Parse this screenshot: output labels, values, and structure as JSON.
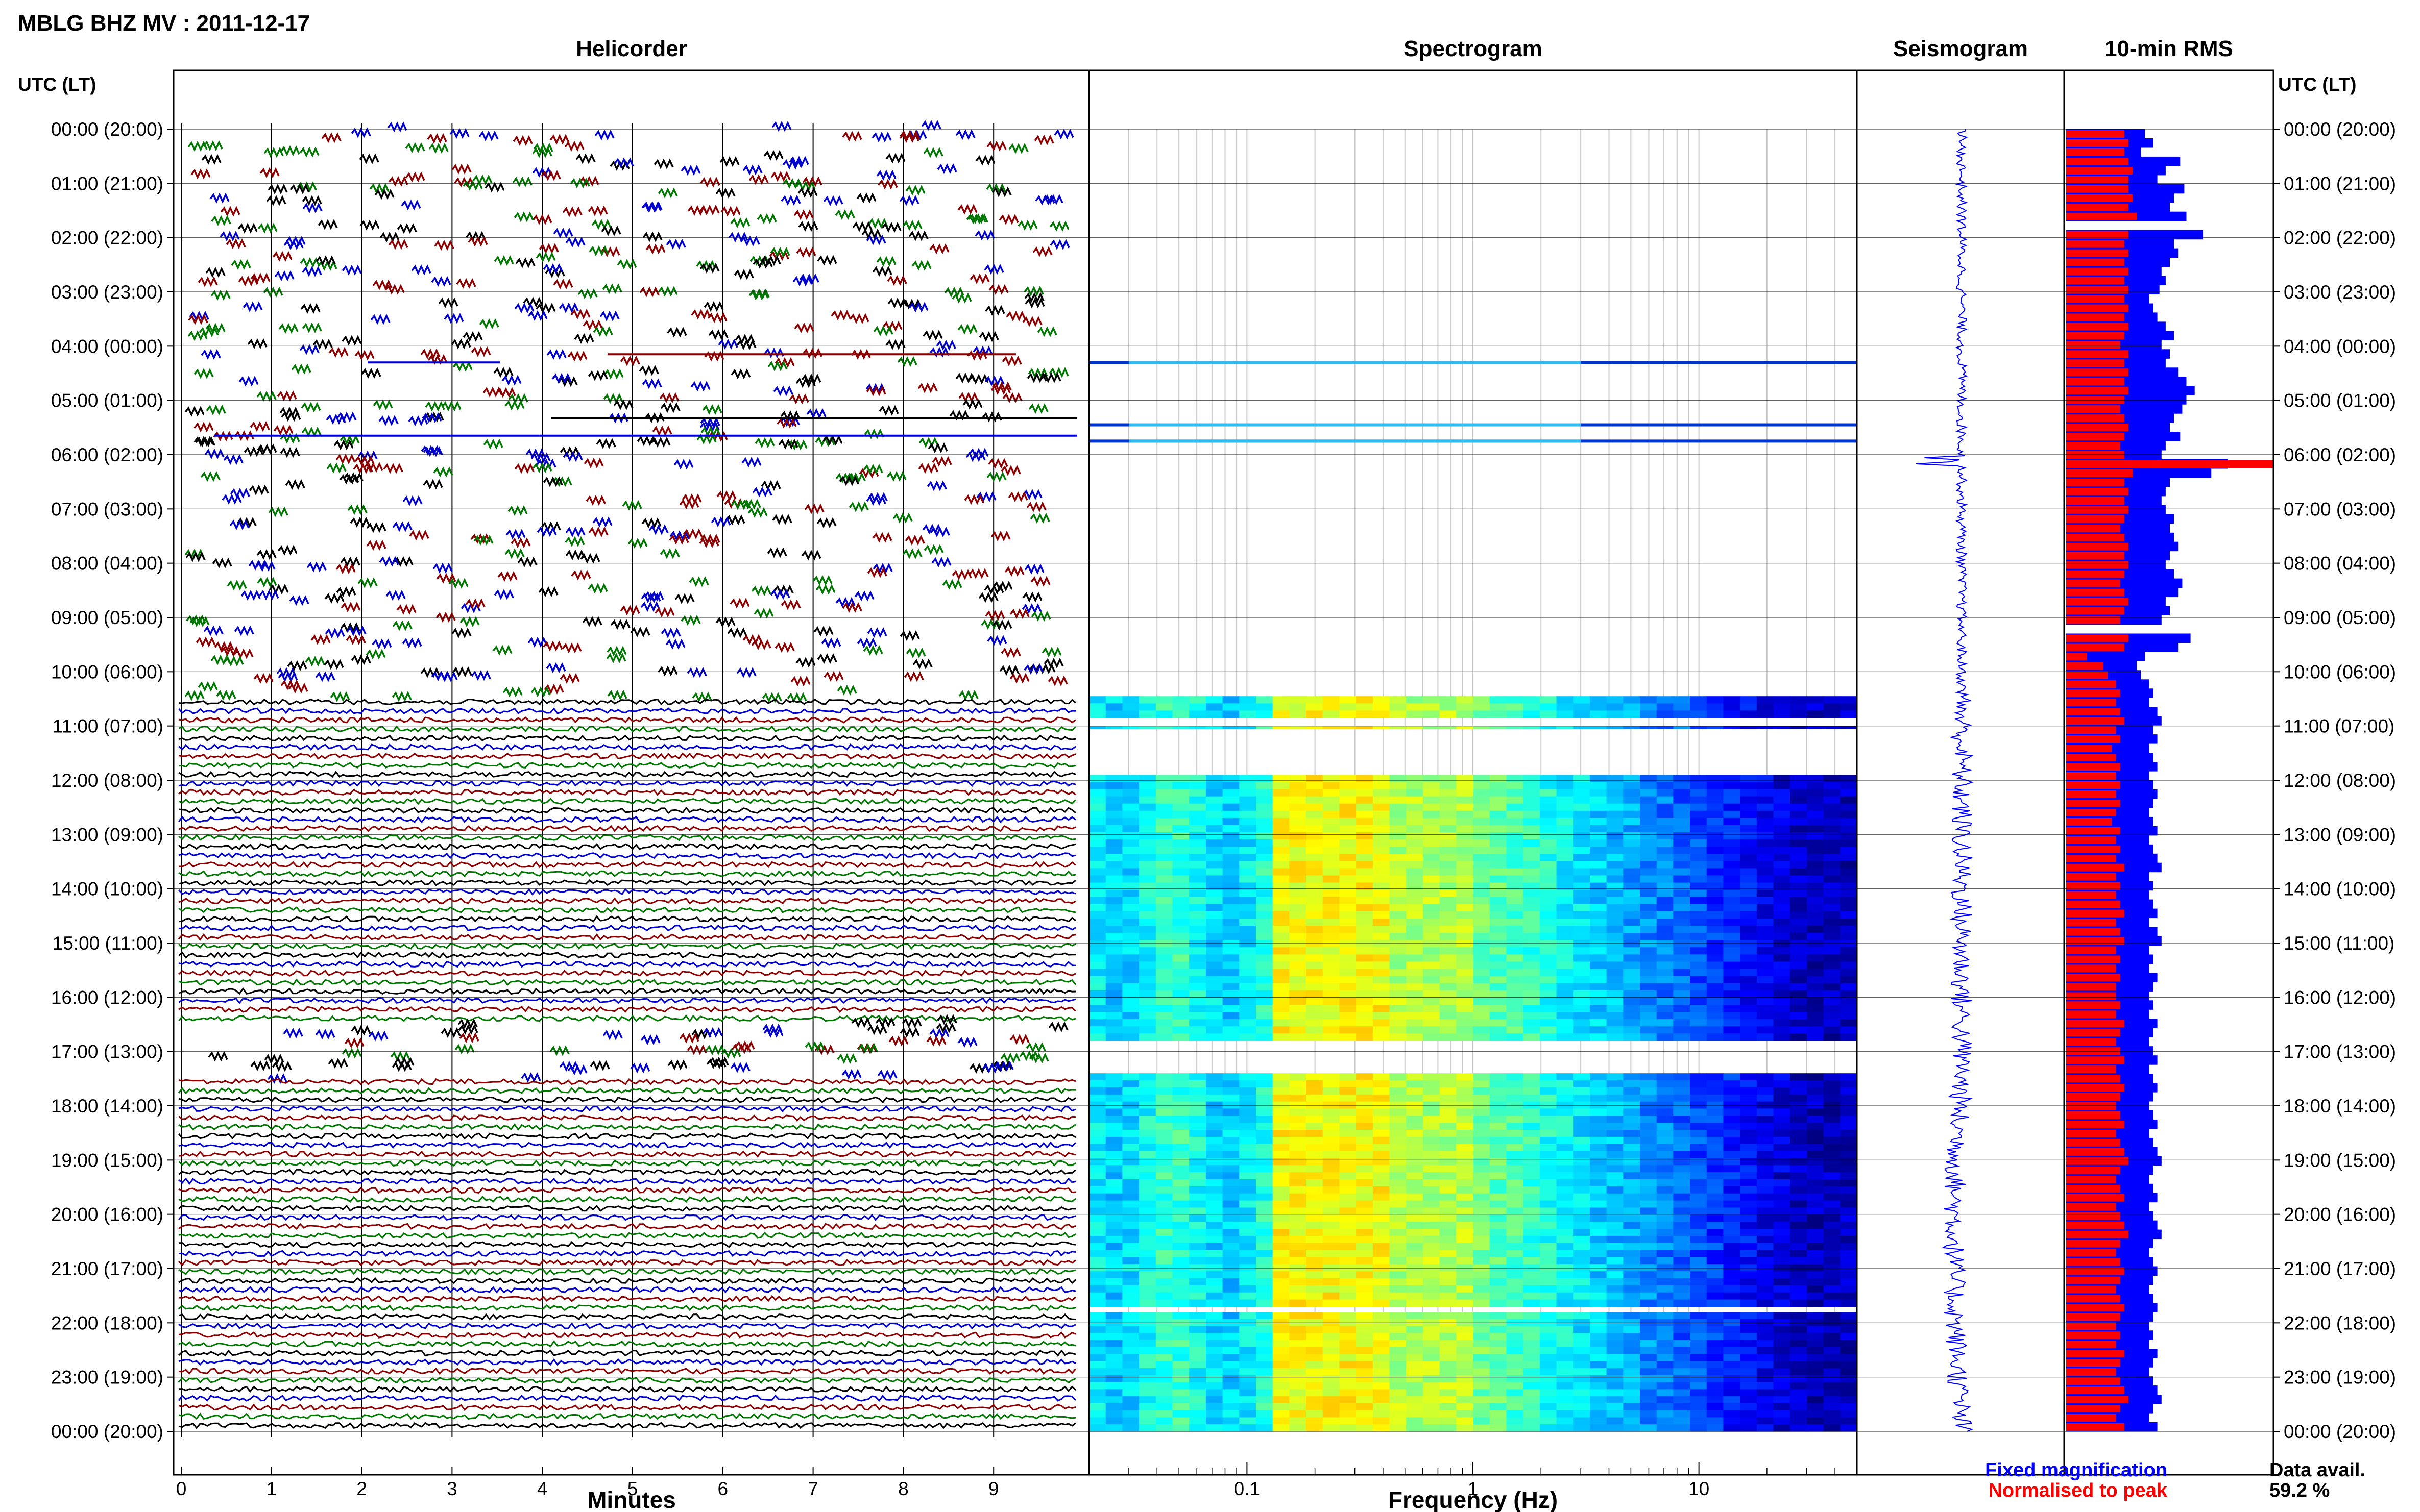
{
  "title": "MBLG BHZ MV : 2011-12-17",
  "time_axis_label": "UTC (LT)",
  "time_labels": [
    "00:00 (20:00)",
    "01:00 (21:00)",
    "02:00 (22:00)",
    "03:00 (23:00)",
    "04:00 (00:00)",
    "05:00 (01:00)",
    "06:00 (02:00)",
    "07:00 (03:00)",
    "08:00 (04:00)",
    "09:00 (05:00)",
    "10:00 (06:00)",
    "11:00 (07:00)",
    "12:00 (08:00)",
    "13:00 (09:00)",
    "14:00 (10:00)",
    "15:00 (11:00)",
    "16:00 (12:00)",
    "17:00 (13:00)",
    "18:00 (14:00)",
    "19:00 (15:00)",
    "20:00 (16:00)",
    "21:00 (17:00)",
    "22:00 (18:00)",
    "23:00 (19:00)",
    "00:00 (20:00)"
  ],
  "panels": {
    "helicorder": {
      "title": "Helicorder",
      "xlabel": "Minutes",
      "ticks": [
        "0",
        "1",
        "2",
        "3",
        "4",
        "5",
        "6",
        "7",
        "8",
        "9"
      ]
    },
    "spectrogram": {
      "title": "Spectrogram",
      "xlabel": "Frequency (Hz)",
      "ticks": [
        "0.1",
        "1",
        "10"
      ]
    },
    "seismogram": {
      "title": "Seismogram"
    },
    "rms": {
      "title": "10-min RMS"
    }
  },
  "legend": {
    "fixed": {
      "label": "Fixed magnification",
      "color": "#0000ff"
    },
    "normalised": {
      "label": "Normalised to peak",
      "color": "#ff0000"
    }
  },
  "data_avail": {
    "label": "Data avail.",
    "value": "59.2 %"
  },
  "colors": {
    "trace_cycle": [
      "#0000cc",
      "#8b0000",
      "#007700",
      "#000000"
    ]
  },
  "chart_data": [
    {
      "type": "line",
      "title": "Helicorder",
      "xlabel": "Minutes",
      "xlim": [
        0,
        10
      ],
      "ylim_hours_utc": [
        0,
        24
      ],
      "trace_interval_min": 10,
      "continuous_segments_utc_h": [
        [
          10.5,
          11.9
        ],
        [
          12.0,
          16.4
        ],
        [
          17.4,
          24.0
        ]
      ]
    },
    {
      "type": "heatmap",
      "title": "Spectrogram",
      "xlabel": "Frequency (Hz)",
      "x_scale": "log",
      "xlim": [
        0.02,
        50
      ],
      "ylim_hours_utc": [
        0,
        24
      ],
      "data_bands_utc_h": [
        [
          10.45,
          10.85
        ],
        [
          11.0,
          11.05
        ],
        [
          11.9,
          16.8
        ],
        [
          17.4,
          21.7
        ],
        [
          21.8,
          24.0
        ]
      ],
      "thin_lines_utc_h": [
        4.3,
        5.45,
        5.75
      ],
      "peak_band_hz": [
        0.14,
        0.35
      ]
    },
    {
      "type": "line",
      "title": "Seismogram",
      "ylim_hours_utc": [
        0,
        24
      ],
      "spike_utc_h": 6.1
    },
    {
      "type": "bar",
      "title": "10-min RMS",
      "ylim_hours_utc": [
        0,
        24
      ],
      "series": [
        {
          "name": "Fixed magnification",
          "values": [
            0.38,
            0.42,
            0.36,
            0.55,
            0.48,
            0.44,
            0.57,
            0.52,
            0.5,
            0.58,
            0.6,
            0.66,
            0.52,
            0.54,
            0.5,
            0.46,
            0.48,
            0.45,
            0.4,
            0.42,
            0.44,
            0.48,
            0.52,
            0.46,
            0.5,
            0.48,
            0.54,
            0.58,
            0.62,
            0.58,
            0.56,
            0.52,
            0.5,
            0.55,
            0.48,
            0.46,
            0.78,
            0.7,
            0.5,
            0.48,
            0.46,
            0.48,
            0.52,
            0.5,
            0.52,
            0.54,
            0.5,
            0.48,
            0.52,
            0.56,
            0.54,
            0.48,
            0.5,
            0.46,
            0.55,
            0.6,
            0.54,
            0.38,
            0.34,
            0.36,
            0.4,
            0.42,
            0.4,
            0.44,
            0.46,
            0.42,
            0.44,
            0.4,
            0.42,
            0.44,
            0.4,
            0.42,
            0.44,
            0.42,
            0.4,
            0.42,
            0.44,
            0.4,
            0.42,
            0.44,
            0.46,
            0.4,
            0.42,
            0.4,
            0.42,
            0.44,
            0.4,
            0.44,
            0.46,
            0.4,
            0.42,
            0.4,
            0.44,
            0.42,
            0.4,
            0.42,
            0.4,
            0.44,
            0.42,
            0.4,
            0.42,
            0.44,
            0.4,
            0.42,
            0.44,
            0.42,
            0.4,
            0.42,
            0.44,
            0.4,
            0.42,
            0.44,
            0.46,
            0.42,
            0.4,
            0.42,
            0.44,
            0.4,
            0.42,
            0.44,
            0.46,
            0.42,
            0.4,
            0.42,
            0.44,
            0.42,
            0.4,
            0.42,
            0.44,
            0.42,
            0.4,
            0.42,
            0.4,
            0.44,
            0.42,
            0.4,
            0.42,
            0.44,
            0.46,
            0.42,
            0.4,
            0.44
          ]
        },
        {
          "name": "Normalised to peak",
          "values": [
            0.28,
            0.3,
            0.28,
            0.3,
            0.32,
            0.3,
            0.3,
            0.32,
            0.3,
            0.34,
            0.32,
            0.3,
            0.28,
            0.3,
            0.28,
            0.3,
            0.28,
            0.3,
            0.28,
            0.3,
            0.28,
            0.3,
            0.28,
            0.26,
            0.3,
            0.28,
            0.3,
            0.28,
            0.3,
            0.28,
            0.26,
            0.28,
            0.3,
            0.28,
            0.26,
            0.28,
            1.0,
            0.32,
            0.28,
            0.3,
            0.28,
            0.3,
            0.28,
            0.26,
            0.28,
            0.3,
            0.28,
            0.3,
            0.28,
            0.26,
            0.28,
            0.3,
            0.28,
            0.26,
            0.28,
            0.3,
            0.28,
            0.1,
            0.18,
            0.2,
            0.24,
            0.26,
            0.24,
            0.26,
            0.28,
            0.24,
            0.26,
            0.22,
            0.24,
            0.26,
            0.24,
            0.26,
            0.24,
            0.26,
            0.24,
            0.22,
            0.26,
            0.24,
            0.26,
            0.24,
            0.28,
            0.24,
            0.26,
            0.24,
            0.26,
            0.28,
            0.24,
            0.26,
            0.28,
            0.24,
            0.26,
            0.24,
            0.26,
            0.24,
            0.24,
            0.26,
            0.24,
            0.28,
            0.26,
            0.24,
            0.26,
            0.28,
            0.24,
            0.26,
            0.28,
            0.26,
            0.24,
            0.26,
            0.28,
            0.24,
            0.26,
            0.28,
            0.3,
            0.26,
            0.24,
            0.26,
            0.28,
            0.24,
            0.26,
            0.28,
            0.3,
            0.26,
            0.24,
            0.26,
            0.28,
            0.26,
            0.24,
            0.26,
            0.28,
            0.26,
            0.24,
            0.26,
            0.24,
            0.28,
            0.26,
            0.24,
            0.26,
            0.28,
            0.3,
            0.26,
            0.24,
            0.28
          ]
        }
      ],
      "gaps_utc_h": [
        1.83,
        9.17
      ]
    }
  ]
}
